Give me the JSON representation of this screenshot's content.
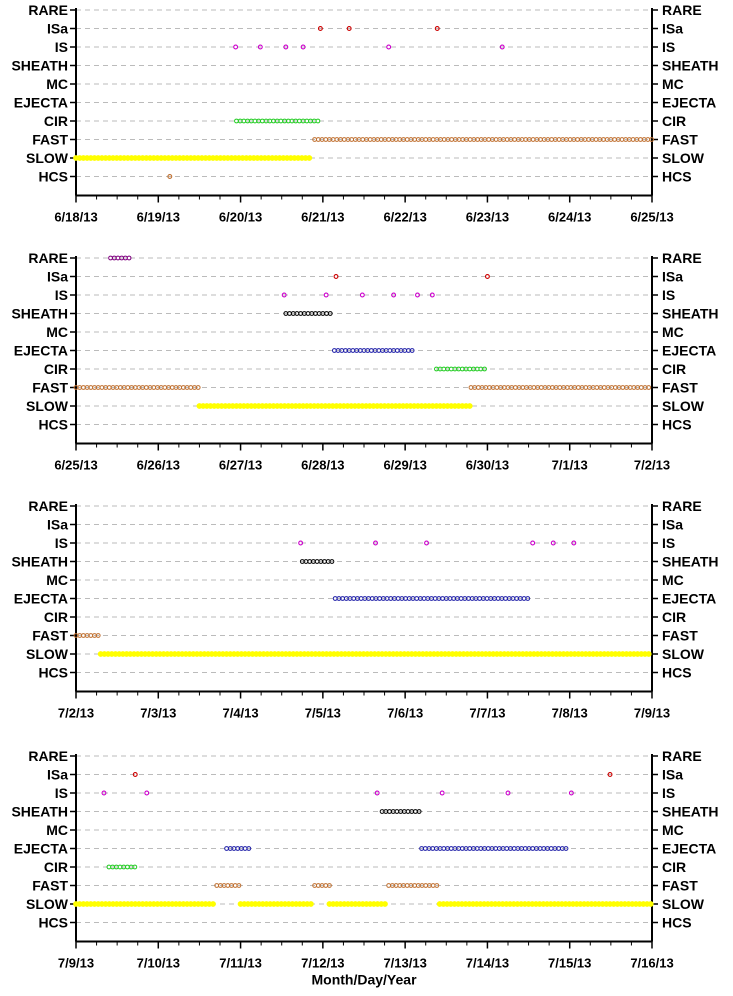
{
  "colors": {
    "RARE": "#800080",
    "ISa": "#cc0000",
    "IS": "#cc00cc",
    "SHEATH": "#000000",
    "EJECTA": "#1f1fa8",
    "CIR": "#22cc22",
    "FAST": "#c07030",
    "SLOW": "#ffff00",
    "HCS": "#c07030",
    "MC": "#000000",
    "grid": "#bbbbbb"
  },
  "chart_data": [
    {
      "type": "scatter",
      "xlabel": "",
      "categories": [
        "RARE",
        "ISa",
        "IS",
        "SHEATH",
        "MC",
        "EJECTA",
        "CIR",
        "FAST",
        "SLOW",
        "HCS"
      ],
      "x_start_day": 0,
      "x_ticks": [
        "6/18/13",
        "6/19/13",
        "6/20/13",
        "6/21/13",
        "6/22/13",
        "6/23/13",
        "6/24/13",
        "6/25/13"
      ],
      "grid": true,
      "points": [
        {
          "category": "ISa",
          "days": [
            2.97,
            3.32,
            4.39
          ]
        },
        {
          "category": "IS",
          "days": [
            1.94,
            2.24,
            2.55,
            2.76,
            3.8,
            5.18
          ]
        },
        {
          "category": "HCS",
          "days": [
            1.14
          ]
        }
      ],
      "intervals": [
        {
          "category": "CIR",
          "start": 1.95,
          "end": 2.95
        },
        {
          "category": "FAST",
          "start": 2.9,
          "end": 7.0
        },
        {
          "category": "SLOW",
          "start": 0.0,
          "end": 2.85
        }
      ]
    },
    {
      "type": "scatter",
      "xlabel": "",
      "categories": [
        "RARE",
        "ISa",
        "IS",
        "SHEATH",
        "MC",
        "EJECTA",
        "CIR",
        "FAST",
        "SLOW",
        "HCS"
      ],
      "x_start_day": 7,
      "x_ticks": [
        "6/25/13",
        "6/26/13",
        "6/27/13",
        "6/28/13",
        "6/29/13",
        "6/30/13",
        "7/1/13",
        "7/2/13"
      ],
      "grid": true,
      "points": [
        {
          "category": "ISa",
          "days": [
            10.16,
            12.0
          ]
        },
        {
          "category": "IS",
          "days": [
            9.53,
            10.04,
            10.48,
            10.86,
            11.15,
            11.33
          ]
        }
      ],
      "intervals": [
        {
          "category": "RARE",
          "start": 7.42,
          "end": 7.65
        },
        {
          "category": "SHEATH",
          "start": 9.55,
          "end": 10.1
        },
        {
          "category": "EJECTA",
          "start": 10.14,
          "end": 11.1
        },
        {
          "category": "CIR",
          "start": 11.38,
          "end": 11.97
        },
        {
          "category": "FAST",
          "start": 7.0,
          "end": 8.5
        },
        {
          "category": "FAST",
          "start": 11.8,
          "end": 14.0
        },
        {
          "category": "SLOW",
          "start": 8.5,
          "end": 11.8
        }
      ]
    },
    {
      "type": "scatter",
      "xlabel": "",
      "categories": [
        "RARE",
        "ISa",
        "IS",
        "SHEATH",
        "MC",
        "EJECTA",
        "CIR",
        "FAST",
        "SLOW",
        "HCS"
      ],
      "x_start_day": 14,
      "x_ticks": [
        "7/2/13",
        "7/3/13",
        "7/4/13",
        "7/5/13",
        "7/6/13",
        "7/7/13",
        "7/8/13",
        "7/9/13"
      ],
      "grid": true,
      "points": [
        {
          "category": "IS",
          "days": [
            16.73,
            17.64,
            18.26,
            19.55,
            19.8,
            20.05
          ]
        }
      ],
      "intervals": [
        {
          "category": "SHEATH",
          "start": 16.75,
          "end": 17.12
        },
        {
          "category": "EJECTA",
          "start": 17.15,
          "end": 19.5
        },
        {
          "category": "FAST",
          "start": 14.0,
          "end": 14.28
        },
        {
          "category": "SLOW",
          "start": 14.3,
          "end": 21.0
        }
      ]
    },
    {
      "type": "scatter",
      "xlabel": "Month/Day/Year",
      "categories": [
        "RARE",
        "ISa",
        "IS",
        "SHEATH",
        "MC",
        "EJECTA",
        "CIR",
        "FAST",
        "SLOW",
        "HCS"
      ],
      "x_start_day": 21,
      "x_ticks": [
        "7/9/13",
        "7/10/13",
        "7/11/13",
        "7/12/13",
        "7/13/13",
        "7/14/13",
        "7/15/13",
        "7/16/13"
      ],
      "grid": true,
      "points": [
        {
          "category": "ISa",
          "days": [
            21.72,
            27.49
          ]
        },
        {
          "category": "IS",
          "days": [
            21.34,
            21.86,
            24.66,
            25.45,
            26.25,
            27.02
          ]
        }
      ],
      "intervals": [
        {
          "category": "SHEATH",
          "start": 24.72,
          "end": 25.2
        },
        {
          "category": "EJECTA",
          "start": 22.83,
          "end": 23.12
        },
        {
          "category": "EJECTA",
          "start": 25.2,
          "end": 26.99
        },
        {
          "category": "CIR",
          "start": 21.4,
          "end": 21.72
        },
        {
          "category": "FAST",
          "start": 22.71,
          "end": 23.0
        },
        {
          "category": "FAST",
          "start": 23.9,
          "end": 24.08
        },
        {
          "category": "FAST",
          "start": 24.8,
          "end": 25.42
        },
        {
          "category": "SLOW",
          "start": 21.0,
          "end": 22.7
        },
        {
          "category": "SLOW",
          "start": 23.0,
          "end": 23.88
        },
        {
          "category": "SLOW",
          "start": 24.08,
          "end": 24.78
        },
        {
          "category": "SLOW",
          "start": 25.42,
          "end": 28.0
        }
      ]
    }
  ]
}
